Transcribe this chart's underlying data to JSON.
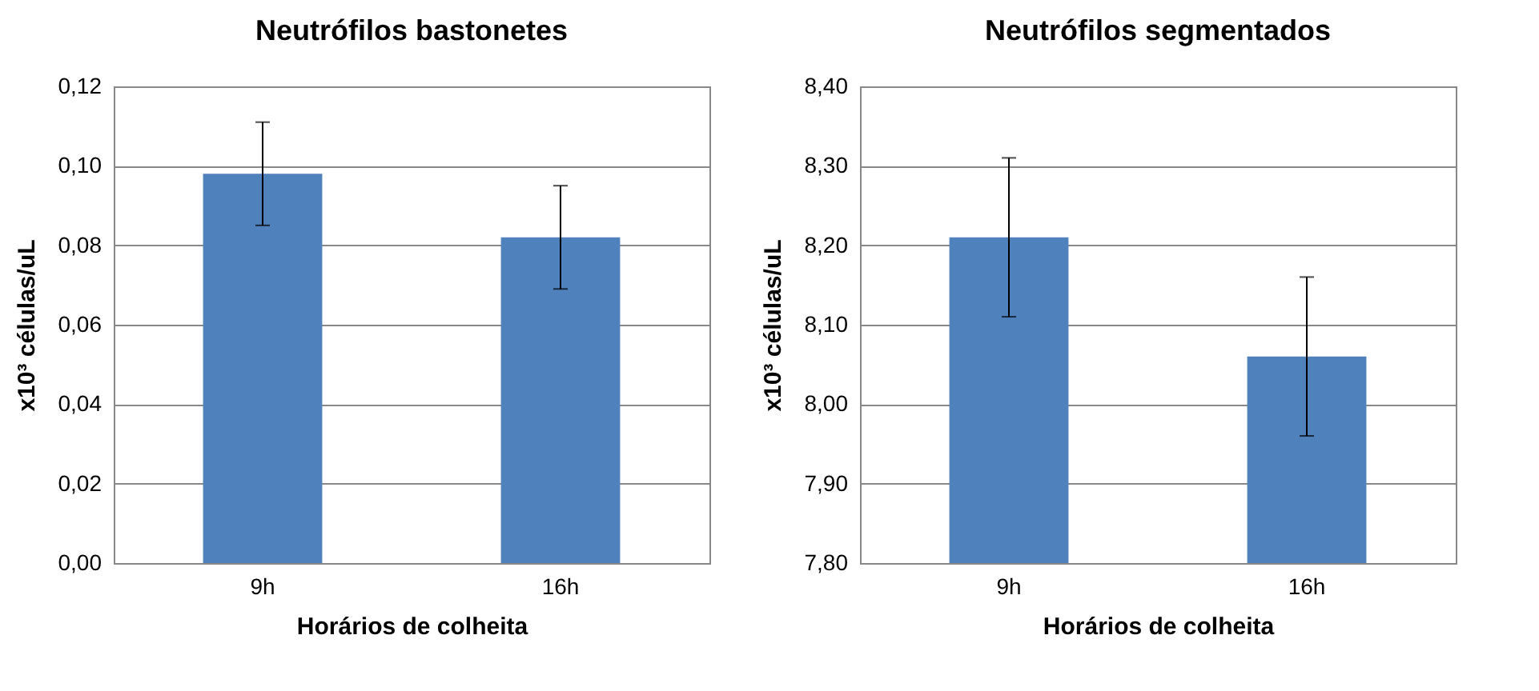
{
  "chart_data": [
    {
      "type": "bar",
      "title": "Neutrófilos bastonetes",
      "xlabel": "Horários de colheita",
      "ylabel": "x10³ células/uL",
      "categories": [
        "9h",
        "16h"
      ],
      "series": [
        {
          "color": "#4f81bd",
          "values": [
            0.098,
            0.082
          ],
          "errors": [
            0.013,
            0.013
          ]
        }
      ],
      "ylim": [
        0,
        0.12
      ],
      "yticks": [
        {
          "value": 0,
          "label": "0,00"
        },
        {
          "value": 0.02,
          "label": "0,02"
        },
        {
          "value": 0.04,
          "label": "0,04"
        },
        {
          "value": 0.06,
          "label": "0,06"
        },
        {
          "value": 0.08,
          "label": "0,08"
        },
        {
          "value": 0.1,
          "label": "0,10"
        },
        {
          "value": 0.12,
          "label": "0,12"
        }
      ],
      "grid": "y"
    },
    {
      "type": "bar",
      "title": "Neutrófilos segmentados",
      "xlabel": "Horários de colheita",
      "ylabel": "x10³ células/uL",
      "categories": [
        "9h",
        "16h"
      ],
      "series": [
        {
          "color": "#4f81bd",
          "values": [
            8.21,
            8.06
          ],
          "errors": [
            0.1,
            0.1
          ]
        }
      ],
      "ylim": [
        7.8,
        8.4
      ],
      "yticks": [
        {
          "value": 7.8,
          "label": "7,80"
        },
        {
          "value": 7.9,
          "label": "7,90"
        },
        {
          "value": 8,
          "label": "8,00"
        },
        {
          "value": 8.1,
          "label": "8,10"
        },
        {
          "value": 8.2,
          "label": "8,20"
        },
        {
          "value": 8.3,
          "label": "8,30"
        },
        {
          "value": 8.4,
          "label": "8,40"
        }
      ],
      "grid": "y"
    }
  ]
}
